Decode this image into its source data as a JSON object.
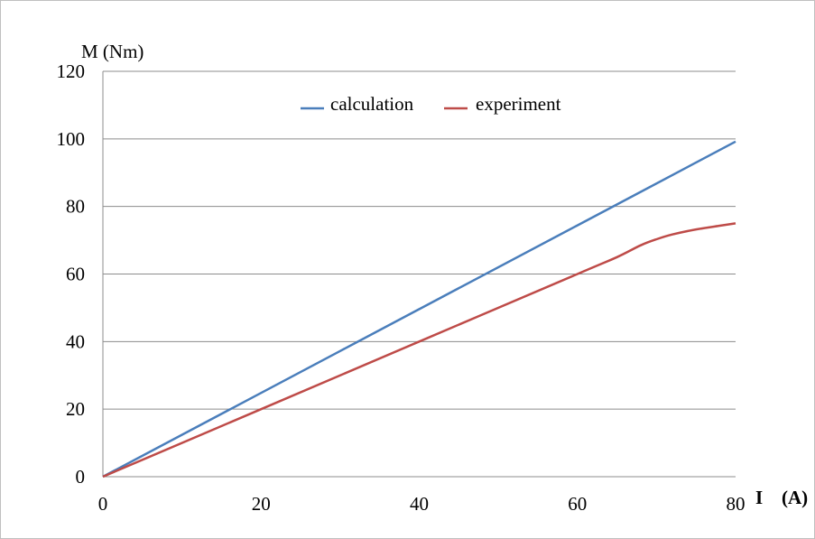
{
  "chart_data": {
    "type": "line",
    "ylabel": "M (Nm)",
    "xlabel_symbol": "I",
    "xlabel_unit": "(A)",
    "xlim": [
      0,
      80
    ],
    "ylim": [
      0,
      120
    ],
    "x_ticks": [
      0,
      20,
      40,
      60,
      80
    ],
    "y_ticks": [
      0,
      20,
      40,
      60,
      80,
      100,
      120
    ],
    "grid": "horizontal",
    "legend_position": "top-center",
    "series": [
      {
        "name": "calculation",
        "color": "#4a7ebb",
        "x": [
          0,
          20,
          40,
          60,
          80
        ],
        "y": [
          0,
          24.8,
          49.6,
          74.4,
          99.2
        ]
      },
      {
        "name": "experiment",
        "color": "#be4b48",
        "x": [
          0,
          20,
          40,
          60,
          65,
          68,
          70,
          72,
          75,
          78,
          80
        ],
        "y": [
          0,
          20,
          40,
          60,
          65,
          68.5,
          70.3,
          71.7,
          73.2,
          74.3,
          75
        ]
      }
    ]
  }
}
